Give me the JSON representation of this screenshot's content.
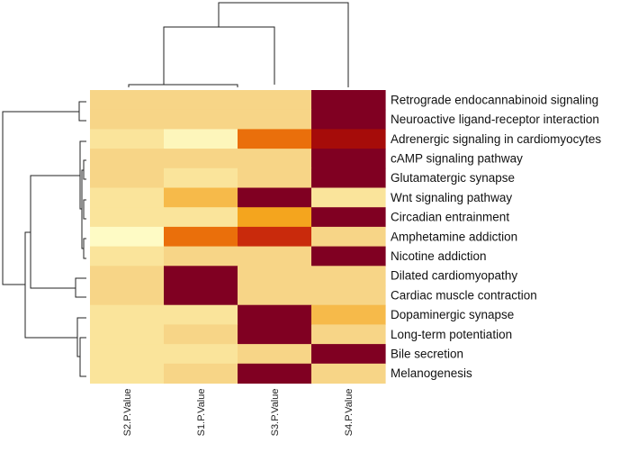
{
  "chart_data": {
    "type": "heatmap",
    "title": "",
    "columns": [
      "S2.P.Value",
      "S1.P.Value",
      "S3.P.Value",
      "S4.P.Value"
    ],
    "rows": [
      "Retrograde endocannabinoid signaling",
      "Neuroactive ligand-receptor interaction",
      "Adrenergic signaling in cardiomyocytes",
      "cAMP signaling pathway",
      "Glutamatergic synapse",
      "Wnt signaling pathway",
      "Circadian entrainment",
      "Amphetamine addiction",
      "Nicotine addiction",
      "Dilated cardiomyopathy",
      "Cardiac muscle contraction",
      "Dopaminergic synapse",
      "Long-term potentiation",
      "Bile secretion",
      "Melanogenesis"
    ],
    "values": [
      [
        0.22,
        0.22,
        0.22,
        1.0
      ],
      [
        0.22,
        0.22,
        0.22,
        1.0
      ],
      [
        0.15,
        0.05,
        0.6,
        0.88
      ],
      [
        0.22,
        0.22,
        0.22,
        1.0
      ],
      [
        0.22,
        0.15,
        0.22,
        1.0
      ],
      [
        0.15,
        0.35,
        1.0,
        0.15
      ],
      [
        0.15,
        0.15,
        0.45,
        1.0
      ],
      [
        0.02,
        0.6,
        0.75,
        0.22
      ],
      [
        0.15,
        0.22,
        0.22,
        1.0
      ],
      [
        0.22,
        1.0,
        0.22,
        0.22
      ],
      [
        0.22,
        1.0,
        0.22,
        0.22
      ],
      [
        0.15,
        0.15,
        1.0,
        0.35
      ],
      [
        0.15,
        0.22,
        1.0,
        0.22
      ],
      [
        0.15,
        0.15,
        0.22,
        1.0
      ],
      [
        0.15,
        0.22,
        1.0,
        0.22
      ]
    ],
    "value_scale": "relative intensity (0 = pale yellow, 1 = dark red)",
    "colormap": [
      "#fffecc",
      "#fbe9a2",
      "#f6cf7f",
      "#f6b53d",
      "#f29a09",
      "#e8640c",
      "#c92a0c",
      "#a80d08",
      "#800022"
    ],
    "row_dendrogram": true,
    "column_dendrogram": true
  }
}
